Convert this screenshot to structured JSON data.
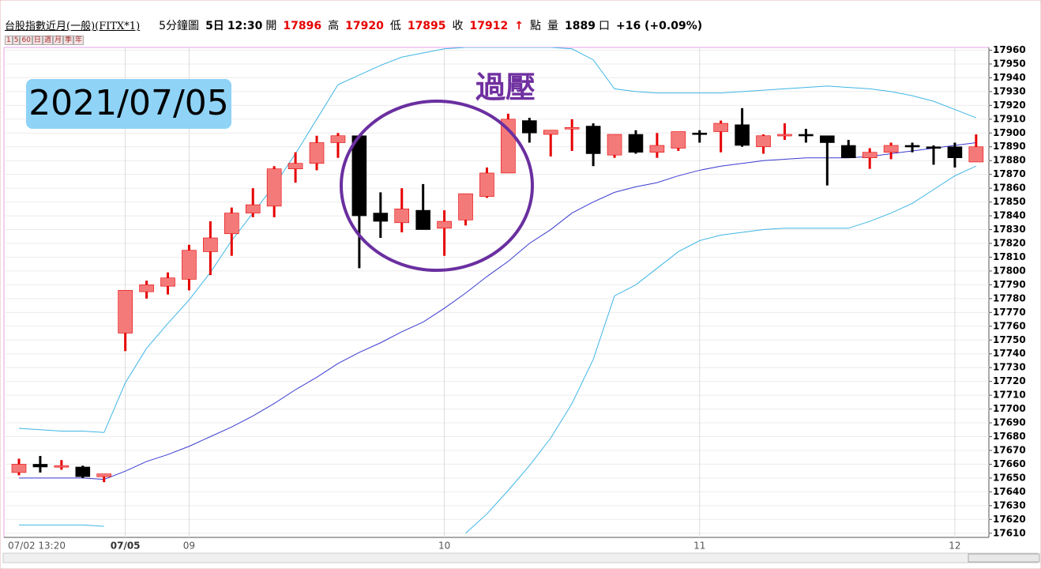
{
  "header": {
    "items": [
      {
        "text": "台股指數近月(一般)(FITX*1)",
        "style": "underline"
      },
      {
        "text": "5分鐘圖",
        "style": "plain"
      },
      {
        "text": "5日",
        "style": "bold"
      },
      {
        "text": "12:30",
        "style": "bold"
      },
      {
        "text": "開",
        "style": "plain"
      },
      {
        "text": "17896",
        "style": "red"
      },
      {
        "text": "高",
        "style": "plain"
      },
      {
        "text": "17920",
        "style": "red"
      },
      {
        "text": "低",
        "style": "plain"
      },
      {
        "text": "17895",
        "style": "red"
      },
      {
        "text": "收",
        "style": "plain"
      },
      {
        "text": "17912",
        "style": "red"
      },
      {
        "text": "↑",
        "style": "red"
      },
      {
        "text": "點",
        "style": "plain"
      },
      {
        "text": "量",
        "style": "plain"
      },
      {
        "text": "1889",
        "style": "bold"
      },
      {
        "text": "口",
        "style": "plain"
      },
      {
        "text": "+16 (+0.09%)",
        "style": "bold"
      }
    ],
    "buttons": [
      "1",
      "5",
      "60",
      "日",
      "週",
      "月",
      "季",
      "年"
    ]
  },
  "chart_data": {
    "type": "candlestick",
    "categories": [
      "07/02 13:20",
      null,
      null,
      null,
      null,
      "07/05",
      null,
      null,
      "09",
      null,
      null,
      null,
      null,
      null,
      null,
      null,
      null,
      null,
      null,
      null,
      "10",
      null,
      null,
      null,
      null,
      null,
      null,
      null,
      null,
      null,
      null,
      null,
      "11",
      null,
      null,
      null,
      null,
      null,
      null,
      null,
      null,
      null,
      null,
      null,
      "12",
      null
    ],
    "open": [
      17654,
      17660,
      17659,
      17658,
      17651,
      17755,
      17785,
      17789,
      17794,
      17814,
      17827,
      17842,
      17847,
      17874,
      17878,
      17893,
      17898,
      17842,
      17835,
      17844,
      17831,
      17837,
      17854,
      17871,
      17909,
      17899,
      17903,
      17905,
      17884,
      17899,
      17886,
      17889,
      17900,
      17901,
      17906,
      17890,
      17898,
      17899,
      17898,
      17891,
      17882,
      17886,
      17891,
      17890,
      17890,
      17879
    ],
    "high": [
      17664,
      17666,
      17663,
      17659,
      17653,
      17786,
      17793,
      17799,
      17819,
      17836,
      17846,
      17860,
      17876,
      17886,
      17898,
      17900,
      17898,
      17857,
      17860,
      17863,
      17844,
      17856,
      17875,
      17914,
      17911,
      17902,
      17910,
      17907,
      17899,
      17902,
      17900,
      17901,
      17902,
      17909,
      17918,
      17899,
      17907,
      17903,
      17898,
      17895,
      17889,
      17893,
      17893,
      17891,
      17893,
      17899
    ],
    "low": [
      17652,
      17654,
      17656,
      17650,
      17647,
      17742,
      17780,
      17783,
      17786,
      17797,
      17811,
      17839,
      17839,
      17864,
      17873,
      17882,
      17802,
      17824,
      17828,
      17830,
      17811,
      17833,
      17853,
      17871,
      17893,
      17883,
      17887,
      17876,
      17882,
      17885,
      17882,
      17887,
      17893,
      17886,
      17890,
      17885,
      17895,
      17893,
      17862,
      17882,
      17874,
      17881,
      17886,
      17877,
      17875,
      17879
    ],
    "close": [
      17660,
      17658,
      17659,
      17651,
      17653,
      17786,
      17790,
      17795,
      17815,
      17824,
      17842,
      17848,
      17874,
      17878,
      17893,
      17898,
      17840,
      17836,
      17845,
      17830,
      17836,
      17856,
      17871,
      17910,
      17900,
      17902,
      17904,
      17885,
      17899,
      17886,
      17891,
      17901,
      17899,
      17907,
      17891,
      17898,
      17899,
      17898,
      17893,
      17882,
      17886,
      17891,
      17890,
      17889,
      17882,
      17890
    ],
    "up_color": "#f47a7a",
    "up_wick": "#e60000",
    "down_color": "#000000",
    "bands": [
      {
        "color": "#3fb5e6",
        "values": [
          17686,
          17685,
          17684,
          17684,
          17683,
          17719,
          17744,
          17762,
          17779,
          17799,
          17822,
          17842,
          17862,
          17885,
          17910,
          17935,
          17942,
          17949,
          17955,
          17958,
          17961,
          17962,
          17962,
          17962,
          17962,
          17962,
          17961,
          17953,
          17932,
          17930,
          17929,
          17929,
          17929,
          17929,
          17930,
          17931,
          17932,
          17933,
          17934,
          17933,
          17932,
          17930,
          17927,
          17923,
          17917,
          17911
        ]
      },
      {
        "color": "#3b3bd0",
        "values": [
          17650,
          17650,
          17650,
          17650,
          17649,
          17655,
          17662,
          17667,
          17673,
          17680,
          17687,
          17695,
          17704,
          17714,
          17723,
          17733,
          17741,
          17748,
          17756,
          17763,
          17773,
          17784,
          17796,
          17807,
          17820,
          17830,
          17842,
          17850,
          17857,
          17861,
          17864,
          17869,
          17873,
          17876,
          17878,
          17880,
          17881,
          17882,
          17882,
          17882,
          17883,
          17885,
          17887,
          17889,
          17891,
          17893
        ]
      },
      {
        "color": "#3fb5e6",
        "values": [
          17616,
          17616,
          17616,
          17616,
          17615,
          null,
          null,
          null,
          null,
          null,
          null,
          null,
          null,
          null,
          null,
          null,
          null,
          null,
          null,
          null,
          null,
          17610,
          17624,
          17641,
          17659,
          17679,
          17704,
          17736,
          17782,
          17790,
          17802,
          17814,
          17822,
          17826,
          17828,
          17830,
          17831,
          17831,
          17831,
          17831,
          17836,
          17842,
          17849,
          17859,
          17869,
          17876
        ]
      }
    ],
    "ylim": [
      17607,
      17962
    ],
    "yticks": [
      17610,
      17620,
      17630,
      17640,
      17650,
      17660,
      17670,
      17680,
      17690,
      17700,
      17710,
      17720,
      17730,
      17740,
      17750,
      17760,
      17770,
      17780,
      17790,
      17800,
      17810,
      17820,
      17830,
      17840,
      17850,
      17860,
      17870,
      17880,
      17890,
      17900,
      17910,
      17920,
      17930,
      17940,
      17950,
      17960
    ],
    "grid": true,
    "annotations": {
      "date": "2021/07/05",
      "note": "過壓"
    }
  }
}
